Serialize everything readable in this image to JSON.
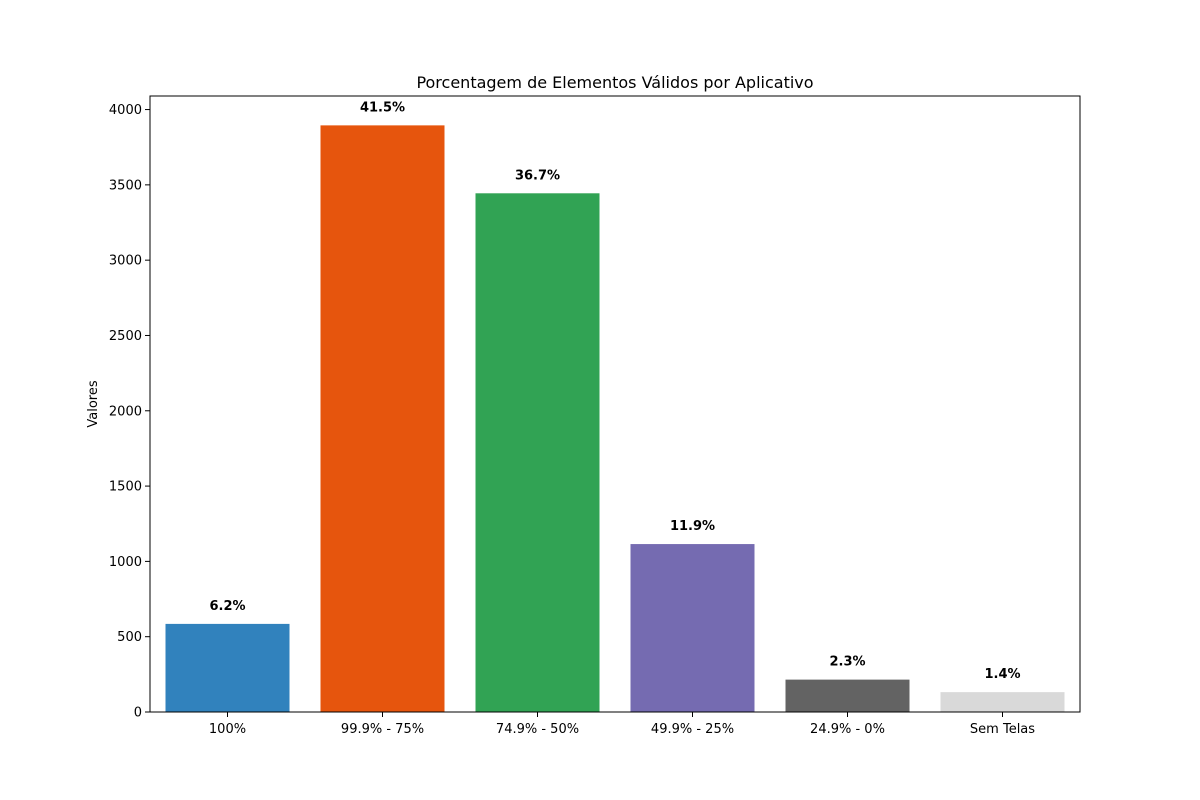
{
  "chart_data": {
    "type": "bar",
    "title": "Porcentagem de Elementos Válidos por Aplicativo",
    "xlabel": "",
    "ylabel": "Valores",
    "categories": [
      "100%",
      "99.9% - 75%",
      "74.9% - 50%",
      "49.9% - 25%",
      "24.9% - 0%",
      "Sem Telas"
    ],
    "values": [
      585,
      3895,
      3444,
      1115,
      215,
      132
    ],
    "bar_labels": [
      "6.2%",
      "41.5%",
      "36.7%",
      "11.9%",
      "2.3%",
      "1.4%"
    ],
    "colors": [
      "#3182bd",
      "#e6550d",
      "#31a354",
      "#756bb1",
      "#636363",
      "#d9d9d9"
    ],
    "ylim": [
      0,
      4090
    ],
    "yticks": [
      0,
      500,
      1000,
      1500,
      2000,
      2500,
      3000,
      3500,
      4000
    ],
    "grid": false,
    "legend": false
  }
}
